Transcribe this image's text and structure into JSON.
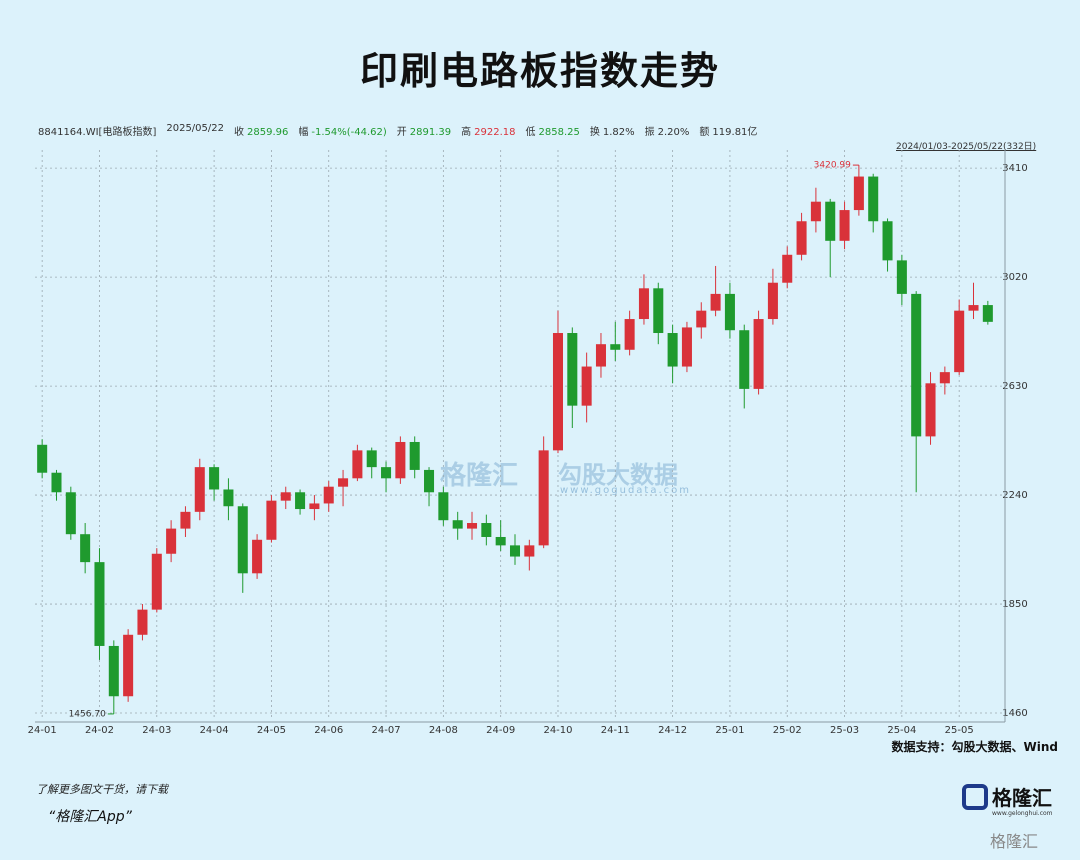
{
  "title": "印刷电路板指数走势",
  "info": {
    "code": "8841164.WI[电路板指数]",
    "date": "2025/05/22",
    "items": [
      {
        "label": "收",
        "value": "2859.96",
        "color": "#1f9a2e"
      },
      {
        "label": "幅",
        "value": "-1.54%(-44.62)",
        "color": "#1f9a2e"
      },
      {
        "label": "开",
        "value": "2891.39",
        "color": "#1f9a2e"
      },
      {
        "label": "高",
        "value": "2922.18",
        "color": "#d9323a"
      },
      {
        "label": "低",
        "value": "2858.25",
        "color": "#1f9a2e"
      },
      {
        "label": "换",
        "value": "1.82%",
        "color": "#333333"
      },
      {
        "label": "振",
        "value": "2.20%",
        "color": "#333333"
      },
      {
        "label": "额",
        "value": "119.81亿",
        "color": "#333333"
      }
    ],
    "range": "2024/01/03-2025/05/22(332日)"
  },
  "chart_data": {
    "type": "candlestick",
    "categories": [
      "24-01",
      null,
      null,
      null,
      "24-02",
      null,
      null,
      null,
      "24-03",
      null,
      null,
      null,
      "24-04",
      null,
      null,
      null,
      "24-05",
      null,
      null,
      null,
      "24-06",
      null,
      null,
      null,
      "24-07",
      null,
      null,
      null,
      "24-08",
      null,
      null,
      null,
      "24-09",
      null,
      null,
      null,
      "24-10",
      null,
      null,
      null,
      "24-11",
      null,
      null,
      null,
      "24-12",
      null,
      null,
      null,
      "25-01",
      null,
      null,
      null,
      "25-02",
      null,
      null,
      null,
      "25-03",
      null,
      null,
      null,
      "25-04",
      null,
      null,
      null,
      "25-05",
      null,
      null
    ],
    "open": [
      2420,
      2320,
      2250,
      2100,
      2000,
      1700,
      1520,
      1740,
      1830,
      2030,
      2120,
      2180,
      2340,
      2260,
      2200,
      1960,
      2080,
      2220,
      2250,
      2190,
      2210,
      2270,
      2300,
      2400,
      2340,
      2300,
      2430,
      2330,
      2250,
      2150,
      2120,
      2140,
      2090,
      2060,
      2020,
      2060,
      2400,
      2820,
      2560,
      2700,
      2780,
      2760,
      2870,
      2980,
      2820,
      2700,
      2840,
      2900,
      2960,
      2830,
      2620,
      2870,
      3000,
      3100,
      3220,
      3290,
      3150,
      3260,
      3380,
      3220,
      3080,
      2960,
      2450,
      2640,
      2680,
      2900,
      2920
    ],
    "high": [
      2440,
      2330,
      2270,
      2140,
      2050,
      1720,
      1760,
      1850,
      2050,
      2150,
      2200,
      2370,
      2350,
      2300,
      2210,
      2100,
      2240,
      2270,
      2260,
      2240,
      2290,
      2330,
      2420,
      2410,
      2360,
      2450,
      2450,
      2340,
      2270,
      2180,
      2180,
      2170,
      2150,
      2100,
      2080,
      2450,
      2900,
      2840,
      2750,
      2820,
      2860,
      2900,
      3030,
      3000,
      2850,
      2860,
      2930,
      3060,
      3000,
      2850,
      2900,
      3050,
      3130,
      3250,
      3340,
      3300,
      3290,
      3420.99,
      3390,
      3230,
      3100,
      2970,
      2680,
      2700,
      2940,
      3000,
      2935
    ],
    "low": [
      2300,
      2220,
      2080,
      1960,
      1650,
      1456.7,
      1500,
      1720,
      1820,
      2000,
      2090,
      2150,
      2220,
      2150,
      1890,
      1940,
      2070,
      2190,
      2170,
      2150,
      2180,
      2200,
      2290,
      2300,
      2250,
      2280,
      2300,
      2200,
      2130,
      2080,
      2080,
      2060,
      2040,
      1990,
      1970,
      2050,
      2390,
      2480,
      2500,
      2660,
      2720,
      2740,
      2850,
      2780,
      2640,
      2680,
      2800,
      2880,
      2800,
      2550,
      2600,
      2850,
      2980,
      3080,
      3180,
      3020,
      3120,
      3240,
      3180,
      3040,
      2920,
      2250,
      2420,
      2600,
      2670,
      2870,
      2850
    ],
    "close": [
      2320,
      2250,
      2100,
      2000,
      1700,
      1520,
      1740,
      1830,
      2030,
      2120,
      2180,
      2340,
      2260,
      2200,
      1960,
      2080,
      2220,
      2250,
      2190,
      2210,
      2270,
      2300,
      2400,
      2340,
      2300,
      2430,
      2330,
      2250,
      2150,
      2120,
      2140,
      2090,
      2060,
      2020,
      2060,
      2400,
      2820,
      2560,
      2700,
      2780,
      2760,
      2870,
      2980,
      2820,
      2700,
      2840,
      2900,
      2960,
      2830,
      2620,
      2870,
      3000,
      3100,
      3220,
      3290,
      3150,
      3260,
      3380,
      3220,
      3080,
      2960,
      2450,
      2640,
      2680,
      2900,
      2920,
      2859.96
    ],
    "high_label": "3420.99",
    "low_label": "1456.70",
    "up_color": "#d9323a",
    "down_color": "#1f9a2e",
    "ylim": [
      1435,
      3475
    ],
    "yticks": [
      1460,
      1850,
      2240,
      2630,
      3020,
      3410
    ],
    "grid": true
  },
  "footer": {
    "credit": "数据支持：勾股大数据、Wind",
    "download": "了解更多图文干货，请下载",
    "app": "“格隆汇App”",
    "logo": "格隆汇",
    "logo_url": "www.gelonghui.com",
    "watermark": "格隆汇",
    "wm_brand": "格隆汇",
    "wm_data": "勾股大数据",
    "wm_url": "www.gogudata.com"
  }
}
